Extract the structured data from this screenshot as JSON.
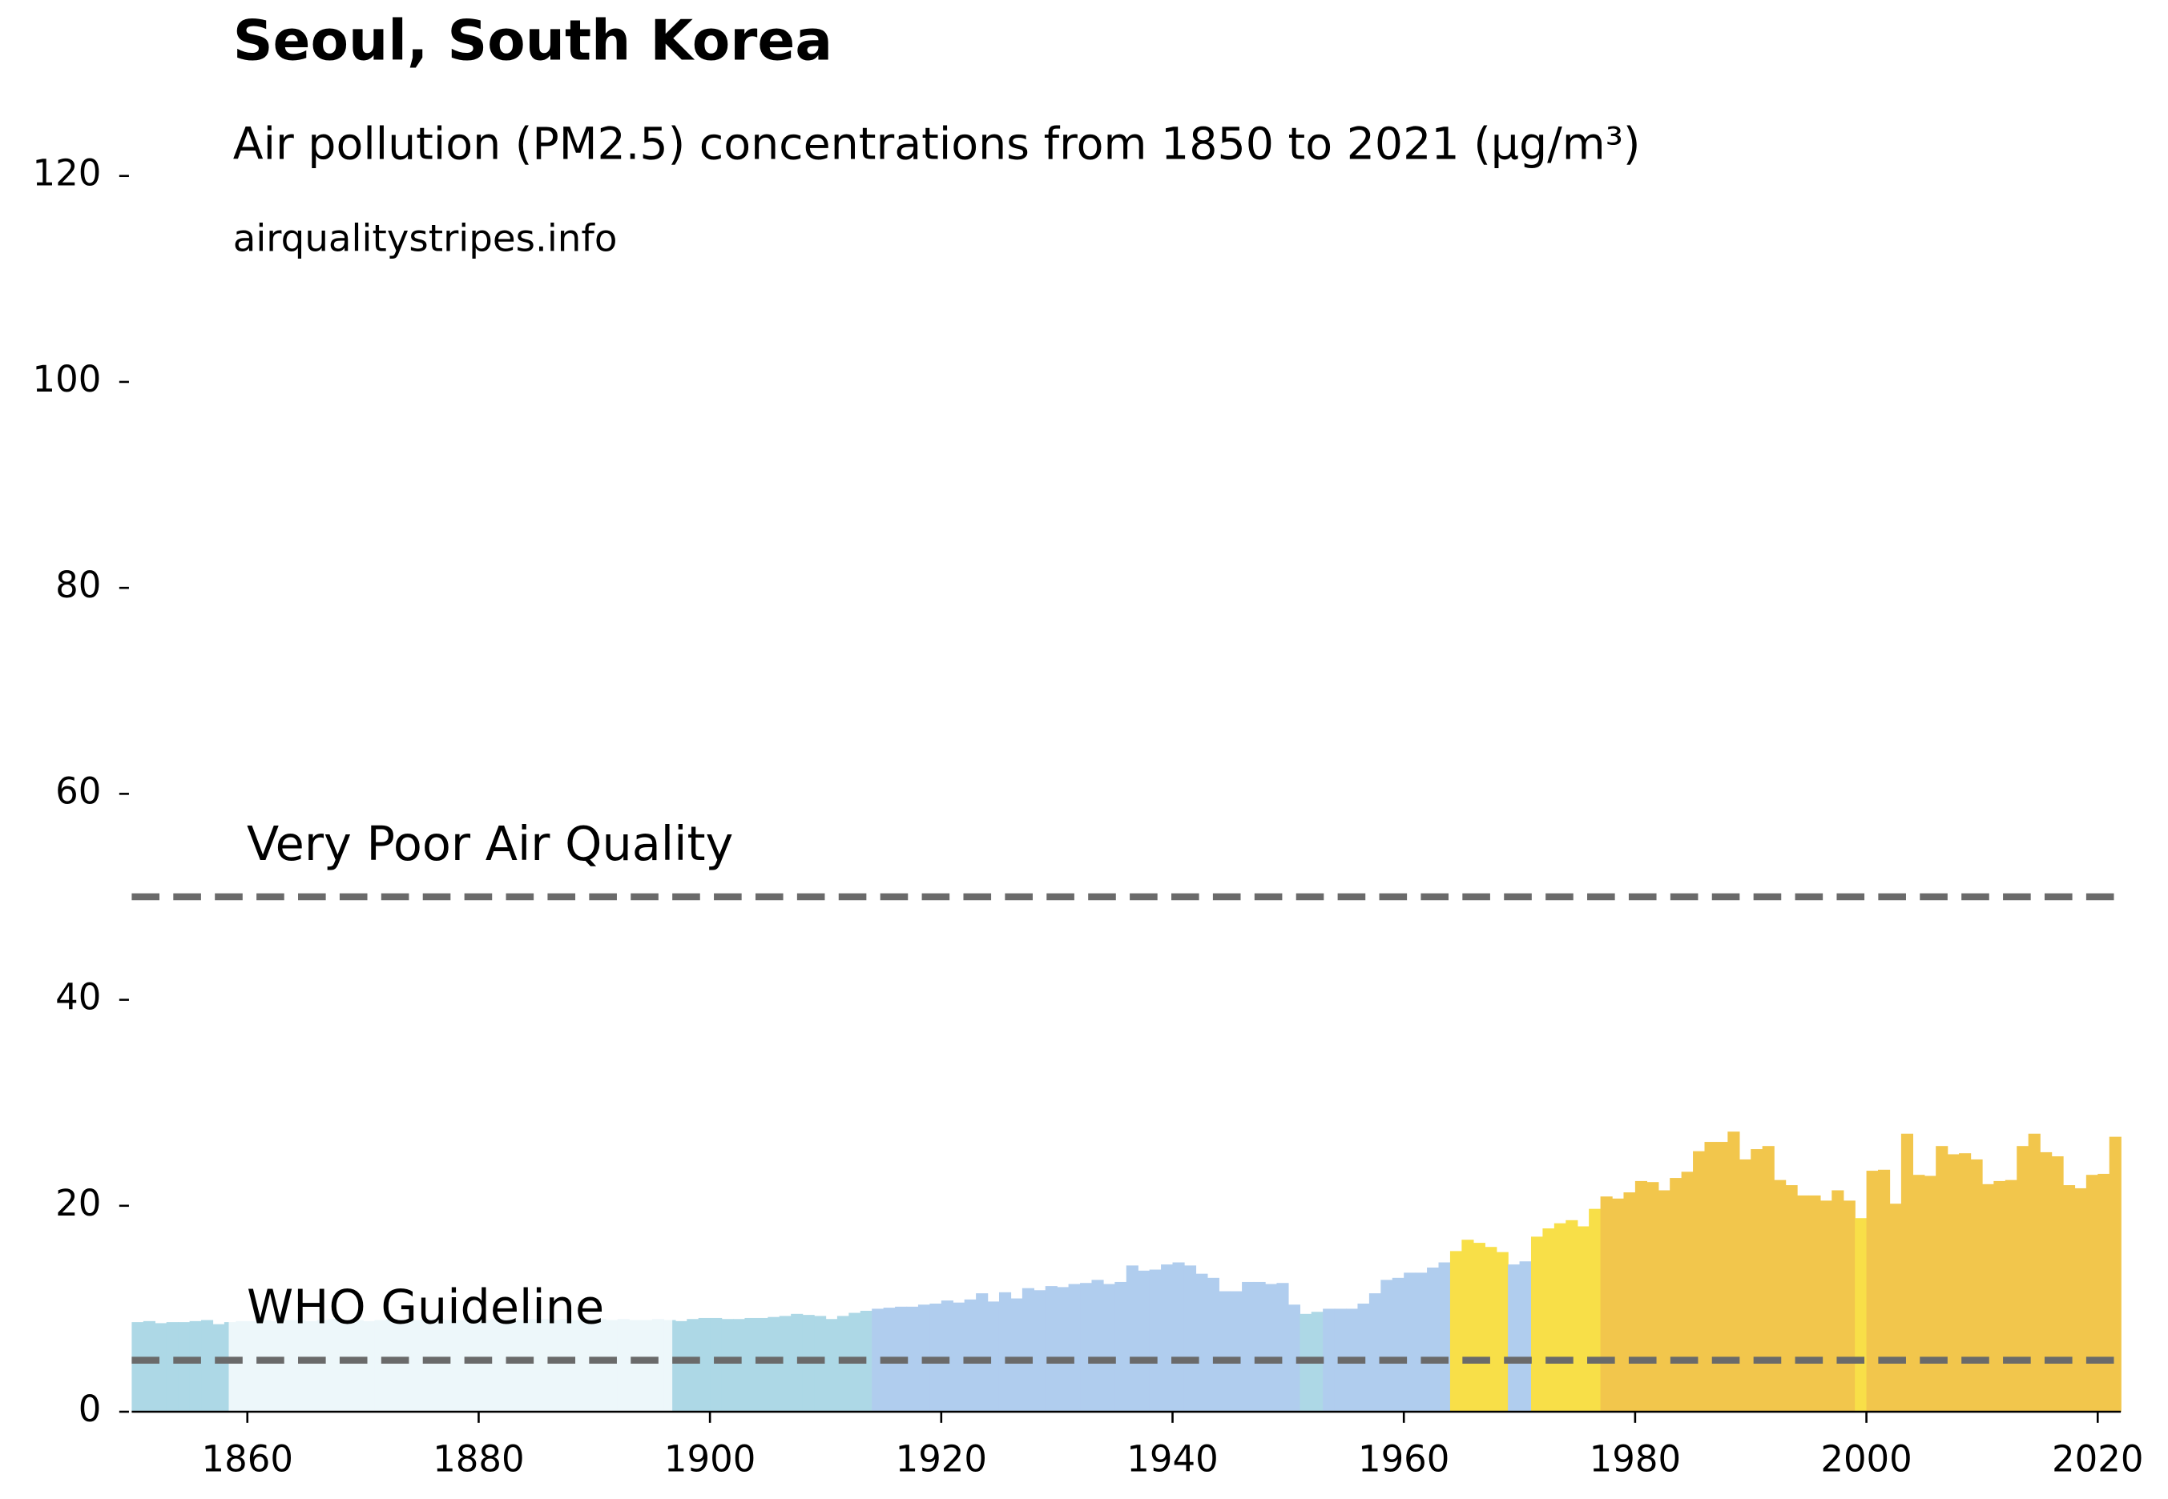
{
  "chart_data": {
    "type": "bar",
    "title": "Seoul, South Korea",
    "subtitle": "Air pollution (PM2.5) concentrations from 1850 to 2021 (µg/m³)",
    "source": "airqualitystripes.info",
    "x": [
      1850,
      1851,
      1852,
      1853,
      1854,
      1855,
      1856,
      1857,
      1858,
      1859,
      1860,
      1861,
      1862,
      1863,
      1864,
      1865,
      1866,
      1867,
      1868,
      1869,
      1870,
      1871,
      1872,
      1873,
      1874,
      1875,
      1876,
      1877,
      1878,
      1879,
      1880,
      1881,
      1882,
      1883,
      1884,
      1885,
      1886,
      1887,
      1888,
      1889,
      1890,
      1891,
      1892,
      1893,
      1894,
      1895,
      1896,
      1897,
      1898,
      1899,
      1900,
      1901,
      1902,
      1903,
      1904,
      1905,
      1906,
      1907,
      1908,
      1909,
      1910,
      1911,
      1912,
      1913,
      1914,
      1915,
      1916,
      1917,
      1918,
      1919,
      1920,
      1921,
      1922,
      1923,
      1924,
      1925,
      1926,
      1927,
      1928,
      1929,
      1930,
      1931,
      1932,
      1933,
      1934,
      1935,
      1936,
      1937,
      1938,
      1939,
      1940,
      1941,
      1942,
      1943,
      1944,
      1945,
      1946,
      1947,
      1948,
      1949,
      1950,
      1951,
      1952,
      1953,
      1954,
      1955,
      1956,
      1957,
      1958,
      1959,
      1960,
      1961,
      1962,
      1963,
      1964,
      1965,
      1966,
      1967,
      1968,
      1969,
      1970,
      1971,
      1972,
      1973,
      1974,
      1975,
      1976,
      1977,
      1978,
      1979,
      1980,
      1981,
      1982,
      1983,
      1984,
      1985,
      1986,
      1987,
      1988,
      1989,
      1990,
      1991,
      1992,
      1993,
      1994,
      1995,
      1996,
      1997,
      1998,
      1999,
      2000,
      2001,
      2002,
      2003,
      2004,
      2005,
      2006,
      2007,
      2008,
      2009,
      2010,
      2011,
      2012,
      2013,
      2014,
      2015,
      2016,
      2017,
      2018,
      2019,
      2020,
      2021
    ],
    "values": [
      8.7,
      8.8,
      8.6,
      8.7,
      8.7,
      8.8,
      8.9,
      8.5,
      8.7,
      8.8,
      8.8,
      8.9,
      8.8,
      8.9,
      8.9,
      8.8,
      8.9,
      9.0,
      8.9,
      8.9,
      8.8,
      8.9,
      9.0,
      8.9,
      8.9,
      9.0,
      9.0,
      8.9,
      8.9,
      9.0,
      8.9,
      9.0,
      9.0,
      8.9,
      9.0,
      9.0,
      8.9,
      9.0,
      8.9,
      9.0,
      9.0,
      8.9,
      9.0,
      8.9,
      8.9,
      9.0,
      8.9,
      8.8,
      9.0,
      9.1,
      9.1,
      9.0,
      9.0,
      9.1,
      9.1,
      9.2,
      9.3,
      9.5,
      9.4,
      9.3,
      9.0,
      9.3,
      9.6,
      9.8,
      10.0,
      10.1,
      10.2,
      10.2,
      10.4,
      10.5,
      10.8,
      10.6,
      10.9,
      11.5,
      10.7,
      11.6,
      11.0,
      12.0,
      11.8,
      12.2,
      12.1,
      12.4,
      12.5,
      12.8,
      12.4,
      12.6,
      14.2,
      13.7,
      13.8,
      14.3,
      14.5,
      14.2,
      13.4,
      13.0,
      11.7,
      11.7,
      12.6,
      12.6,
      12.4,
      12.5,
      10.4,
      9.5,
      9.7,
      10.0,
      10.0,
      10.0,
      10.5,
      11.5,
      12.8,
      13.0,
      13.5,
      13.5,
      14.0,
      14.5,
      15.6,
      16.7,
      16.4,
      16.0,
      15.5,
      14.3,
      14.6,
      17.0,
      17.8,
      18.3,
      18.6,
      18.0,
      19.7,
      20.9,
      20.7,
      21.3,
      22.4,
      22.3,
      21.5,
      22.7,
      23.3,
      25.3,
      26.2,
      26.2,
      27.2,
      24.5,
      25.5,
      25.8,
      22.5,
      22.0,
      21.0,
      21.0,
      20.5,
      21.5,
      20.5,
      18.8,
      23.4,
      23.5,
      20.2,
      27.0,
      23.0,
      22.9,
      25.8,
      25.0,
      25.1,
      24.5,
      22.1,
      22.4,
      22.5,
      25.8,
      27.0,
      25.2,
      24.8,
      22.0,
      21.7,
      23.0,
      23.1,
      26.7
    ],
    "colors": [
      "#add8e6",
      "#add8e6",
      "#add8e6",
      "#add8e6",
      "#add8e6",
      "#add8e6",
      "#add8e6",
      "#add8e6",
      "#add8e6",
      "#add8e6",
      "#add8e6",
      "#add8e6",
      "#add8e6",
      "#add8e6",
      "#add8e6",
      "#add8e6",
      "#add8e6",
      "#add8e6",
      "#add8e6",
      "#add8e6",
      "#add8e6",
      "#add8e6",
      "#add8e6",
      "#add8e6",
      "#add8e6",
      "#add8e6",
      "#add8e6",
      "#add8e6",
      "#add8e6",
      "#add8e6",
      "#add8e6",
      "#add8e6",
      "#add8e6",
      "#add8e6",
      "#add8e6",
      "#add8e6",
      "#add8e6",
      "#add8e6",
      "#add8e6",
      "#add8e6",
      "#add8e6",
      "#add8e6",
      "#add8e6",
      "#add8e6",
      "#add8e6",
      "#add8e6",
      "#add8e6",
      "#add8e6",
      "#add8e6",
      "#add8e6",
      "#add8e6",
      "#add8e6",
      "#add8e6",
      "#add8e6",
      "#add8e6",
      "#add8e6",
      "#add8e6",
      "#add8e6",
      "#add8e6",
      "#add8e6",
      "#add8e6",
      "#add8e6",
      "#add8e6",
      "#add8e6",
      "#b0cdee",
      "#b0cdee",
      "#b0cdee",
      "#b0cdee",
      "#b0cdee",
      "#b0cdee",
      "#b0cdee",
      "#b0cdee",
      "#b0cdee",
      "#b0cdee",
      "#b0cdee",
      "#b0cdee",
      "#b0cdee",
      "#b0cdee",
      "#b0cdee",
      "#b0cdee",
      "#b0cdee",
      "#b0cdee",
      "#b0cdee",
      "#b0cdee",
      "#b0cdee",
      "#b0cdee",
      "#b0cdee",
      "#b0cdee",
      "#b0cdee",
      "#b0cdee",
      "#b0cdee",
      "#b0cdee",
      "#b0cdee",
      "#b0cdee",
      "#b0cdee",
      "#b0cdee",
      "#b0cdee",
      "#b0cdee",
      "#b0cdee",
      "#b0cdee",
      "#b0cdee",
      "#add8e6",
      "#add8e6",
      "#b0cdee",
      "#b0cdee",
      "#b0cdee",
      "#b0cdee",
      "#b0cdee",
      "#b0cdee",
      "#b0cdee",
      "#b0cdee",
      "#b0cdee",
      "#b0cdee",
      "#b0cdee",
      "#f8df48",
      "#f8df48",
      "#f8df48",
      "#f8df48",
      "#f8df48",
      "#b0cdee",
      "#b0cdee",
      "#f8df48",
      "#f8df48",
      "#f8df48",
      "#f8df48",
      "#f8df48",
      "#f8df48",
      "#f2c64c",
      "#f2c64c",
      "#f2c64c",
      "#f2c64c",
      "#f2c64c",
      "#f2c64c",
      "#f2c64c",
      "#f2c64c",
      "#f2c64c",
      "#f2c64c",
      "#f2c64c",
      "#f2c64c",
      "#f2c64c",
      "#f2c64c",
      "#f2c64c",
      "#f2c64c",
      "#f2c64c",
      "#f2c64c",
      "#f2c64c",
      "#f2c64c",
      "#f2c64c",
      "#f2c64c",
      "#f8df48",
      "#f2c64c",
      "#f2c64c",
      "#f2c64c",
      "#f2c64c",
      "#f2c64c",
      "#f2c64c",
      "#f2c64c",
      "#f2c64c",
      "#f2c64c",
      "#f2c64c",
      "#f2c64c",
      "#f2c64c",
      "#f2c64c",
      "#f2c64c",
      "#f2c64c",
      "#f2c64c",
      "#f2c64c",
      "#f2c64c",
      "#f2c64c",
      "#f2c64c",
      "#f2c64c",
      "#f2c64c"
    ],
    "reference_lines": [
      {
        "label": "Very Poor Air Quality",
        "value": 50
      },
      {
        "label": "WHO Guideline",
        "value": 5
      }
    ],
    "reference_color": "#6a6a6a",
    "xlim": [
      1850,
      2022
    ],
    "xticks": [
      1860,
      1880,
      1900,
      1920,
      1940,
      1960,
      1980,
      2000,
      2020
    ],
    "ylim": [
      0,
      120
    ],
    "yticks": [
      0,
      20,
      40,
      60,
      80,
      100,
      120
    ],
    "grid": false
  }
}
